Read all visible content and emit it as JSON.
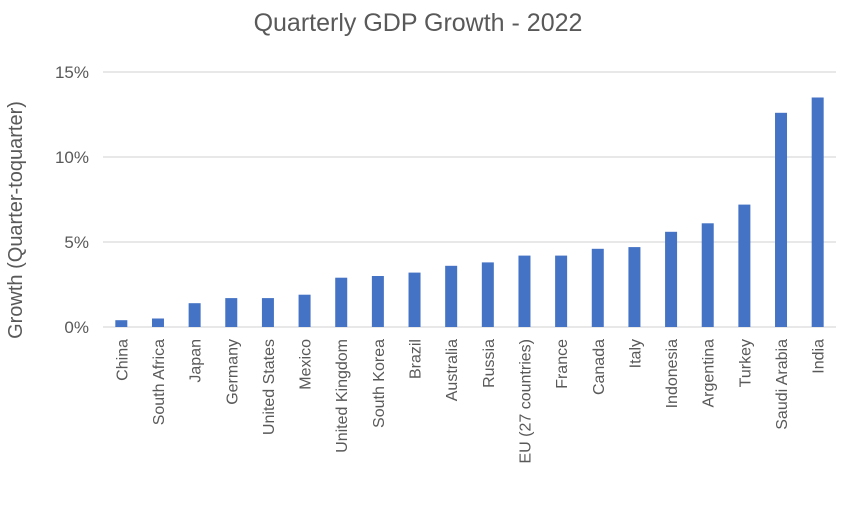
{
  "chart_data": {
    "type": "bar",
    "title": "Quarterly GDP Growth - 2022",
    "xlabel": "",
    "ylabel": "Growth (Quarter-toquarter)",
    "ylim": [
      0,
      15
    ],
    "yticks": [
      0,
      5,
      10,
      15
    ],
    "ytick_labels": [
      "0%",
      "5%",
      "10%",
      "15%"
    ],
    "grid": true,
    "legend": "none",
    "categories": [
      "China",
      "South Africa",
      "Japan",
      "Germany",
      "United States",
      "Mexico",
      "United Kingdom",
      "South Korea",
      "Brazil",
      "Australia",
      "Russia",
      "EU (27 countries)",
      "France",
      "Canada",
      "Italy",
      "Indonesia",
      "Argentina",
      "Turkey",
      "Saudi Arabia",
      "India"
    ],
    "series": [
      {
        "name": "Growth",
        "values": [
          0.4,
          0.5,
          1.4,
          1.7,
          1.7,
          1.9,
          2.9,
          3.0,
          3.2,
          3.6,
          3.8,
          4.2,
          4.2,
          4.6,
          4.7,
          5.6,
          6.1,
          7.2,
          12.6,
          13.5
        ]
      }
    ],
    "colors": {
      "bar": "#4472C4",
      "grid": "#D9D9D9",
      "text": "#595959"
    }
  }
}
